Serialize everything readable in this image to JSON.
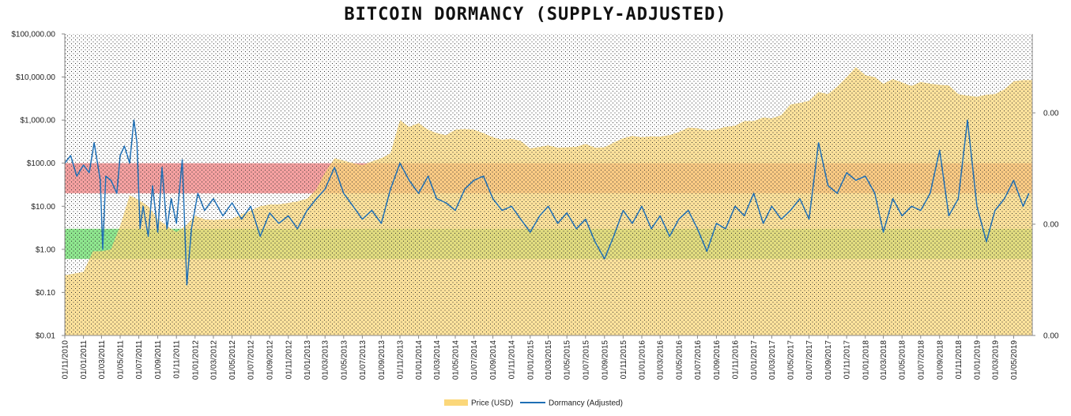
{
  "chart_data": {
    "type": "area",
    "title": "BITCOIN DORMANCY (SUPPLY-ADJUSTED)",
    "y_scale": "log",
    "ylim": [
      0.01,
      100000
    ],
    "y_ticks": [
      "$100,000.00",
      "$10,000.00",
      "$1,000.00",
      "$100.00",
      "$10.00",
      "$1.00",
      "$0.10",
      "$0.01"
    ],
    "y2_ticks": [
      "0.00",
      "0.00",
      "0.00"
    ],
    "x_ticks": [
      "01/11/2010",
      "01/01/2011",
      "01/03/2011",
      "01/05/2011",
      "01/07/2011",
      "01/09/2011",
      "01/11/2011",
      "01/01/2012",
      "01/03/2012",
      "01/05/2012",
      "01/07/2012",
      "01/09/2012",
      "01/11/2012",
      "01/01/2013",
      "01/03/2013",
      "01/05/2013",
      "01/07/2013",
      "01/09/2013",
      "01/11/2013",
      "01/01/2014",
      "01/03/2014",
      "01/05/2014",
      "01/07/2014",
      "01/09/2014",
      "01/11/2014",
      "01/01/2015",
      "01/03/2015",
      "01/05/2015",
      "01/07/2015",
      "01/09/2015",
      "01/11/2015",
      "01/01/2016",
      "01/03/2016",
      "01/05/2016",
      "01/07/2016",
      "01/09/2016",
      "01/11/2016",
      "01/01/2017",
      "01/03/2017",
      "01/05/2017",
      "01/07/2017",
      "01/09/2017",
      "01/11/2017",
      "01/01/2018",
      "01/03/2018",
      "01/05/2018",
      "01/07/2018",
      "01/09/2018",
      "01/11/2018",
      "01/01/2019",
      "01/03/2019",
      "01/05/2019"
    ],
    "bands": [
      {
        "name": "high",
        "ymin": 20,
        "ymax": 100,
        "color": "#f4a0a0"
      },
      {
        "name": "low",
        "ymin": 0.6,
        "ymax": 3,
        "color": "#8ee68e"
      }
    ],
    "series": [
      {
        "name": "Price (USD)",
        "kind": "area",
        "color": "#fbd77a",
        "points": [
          [
            "2010-11-01",
            0.25
          ],
          [
            "2011-01-01",
            0.3
          ],
          [
            "2011-02-01",
            0.9
          ],
          [
            "2011-03-01",
            0.9
          ],
          [
            "2011-04-01",
            1.0
          ],
          [
            "2011-05-01",
            3.5
          ],
          [
            "2011-06-01",
            18
          ],
          [
            "2011-07-01",
            14
          ],
          [
            "2011-08-01",
            10
          ],
          [
            "2011-09-01",
            5
          ],
          [
            "2011-10-01",
            3.5
          ],
          [
            "2011-11-01",
            2.5
          ],
          [
            "2011-12-01",
            3.5
          ],
          [
            "2012-01-01",
            6
          ],
          [
            "2012-02-01",
            5
          ],
          [
            "2012-03-01",
            4.8
          ],
          [
            "2012-04-01",
            5
          ],
          [
            "2012-05-01",
            5.1
          ],
          [
            "2012-06-01",
            6.5
          ],
          [
            "2012-07-01",
            8
          ],
          [
            "2012-08-01",
            10
          ],
          [
            "2012-09-01",
            11
          ],
          [
            "2012-10-01",
            11
          ],
          [
            "2012-11-01",
            12
          ],
          [
            "2012-12-01",
            13
          ],
          [
            "2013-01-01",
            15
          ],
          [
            "2013-02-01",
            25
          ],
          [
            "2013-03-01",
            60
          ],
          [
            "2013-04-01",
            130
          ],
          [
            "2013-05-01",
            115
          ],
          [
            "2013-06-01",
            100
          ],
          [
            "2013-07-01",
            90
          ],
          [
            "2013-08-01",
            110
          ],
          [
            "2013-09-01",
            130
          ],
          [
            "2013-10-01",
            170
          ],
          [
            "2013-11-01",
            1000
          ],
          [
            "2013-12-01",
            700
          ],
          [
            "2014-01-01",
            850
          ],
          [
            "2014-02-01",
            600
          ],
          [
            "2014-03-01",
            500
          ],
          [
            "2014-04-01",
            450
          ],
          [
            "2014-05-01",
            600
          ],
          [
            "2014-06-01",
            620
          ],
          [
            "2014-07-01",
            600
          ],
          [
            "2014-08-01",
            500
          ],
          [
            "2014-09-01",
            400
          ],
          [
            "2014-10-01",
            350
          ],
          [
            "2014-11-01",
            370
          ],
          [
            "2014-12-01",
            330
          ],
          [
            "2015-01-01",
            220
          ],
          [
            "2015-02-01",
            240
          ],
          [
            "2015-03-01",
            260
          ],
          [
            "2015-04-01",
            230
          ],
          [
            "2015-05-01",
            235
          ],
          [
            "2015-06-01",
            240
          ],
          [
            "2015-07-01",
            280
          ],
          [
            "2015-08-01",
            230
          ],
          [
            "2015-09-01",
            235
          ],
          [
            "2015-10-01",
            300
          ],
          [
            "2015-11-01",
            380
          ],
          [
            "2015-12-01",
            430
          ],
          [
            "2016-01-01",
            400
          ],
          [
            "2016-02-01",
            420
          ],
          [
            "2016-03-01",
            415
          ],
          [
            "2016-04-01",
            450
          ],
          [
            "2016-05-01",
            530
          ],
          [
            "2016-06-01",
            670
          ],
          [
            "2016-07-01",
            650
          ],
          [
            "2016-08-01",
            580
          ],
          [
            "2016-09-01",
            610
          ],
          [
            "2016-10-01",
            700
          ],
          [
            "2016-11-01",
            740
          ],
          [
            "2016-12-01",
            950
          ],
          [
            "2017-01-01",
            950
          ],
          [
            "2017-02-01",
            1150
          ],
          [
            "2017-03-01",
            1100
          ],
          [
            "2017-04-01",
            1300
          ],
          [
            "2017-05-01",
            2300
          ],
          [
            "2017-06-01",
            2500
          ],
          [
            "2017-07-01",
            2800
          ],
          [
            "2017-08-01",
            4500
          ],
          [
            "2017-09-01",
            4000
          ],
          [
            "2017-10-01",
            6000
          ],
          [
            "2017-11-01",
            10000
          ],
          [
            "2017-12-01",
            17000
          ],
          [
            "2018-01-01",
            11000
          ],
          [
            "2018-02-01",
            10000
          ],
          [
            "2018-03-01",
            7000
          ],
          [
            "2018-04-01",
            9000
          ],
          [
            "2018-05-01",
            7500
          ],
          [
            "2018-06-01",
            6200
          ],
          [
            "2018-07-01",
            7700
          ],
          [
            "2018-08-01",
            7000
          ],
          [
            "2018-09-01",
            6600
          ],
          [
            "2018-10-01",
            6400
          ],
          [
            "2018-11-01",
            4000
          ],
          [
            "2018-12-01",
            3700
          ],
          [
            "2019-01-01",
            3500
          ],
          [
            "2019-02-01",
            3900
          ],
          [
            "2019-03-01",
            4000
          ],
          [
            "2019-04-01",
            5200
          ],
          [
            "2019-05-01",
            8000
          ],
          [
            "2019-06-01",
            8500
          ]
        ]
      },
      {
        "name": "Dormancy (Adjusted)",
        "kind": "line",
        "color": "#1f6fb5",
        "points": [
          [
            "2010-11-01",
            100
          ],
          [
            "2010-11-20",
            150
          ],
          [
            "2010-12-10",
            50
          ],
          [
            "2011-01-01",
            90
          ],
          [
            "2011-01-20",
            60
          ],
          [
            "2011-02-05",
            300
          ],
          [
            "2011-02-25",
            40
          ],
          [
            "2011-03-05",
            1
          ],
          [
            "2011-03-15",
            50
          ],
          [
            "2011-04-01",
            40
          ],
          [
            "2011-04-20",
            20
          ],
          [
            "2011-05-01",
            150
          ],
          [
            "2011-05-15",
            250
          ],
          [
            "2011-06-01",
            100
          ],
          [
            "2011-06-15",
            1000
          ],
          [
            "2011-06-25",
            300
          ],
          [
            "2011-07-05",
            3
          ],
          [
            "2011-07-15",
            10
          ],
          [
            "2011-08-01",
            2
          ],
          [
            "2011-08-15",
            30
          ],
          [
            "2011-09-01",
            2.5
          ],
          [
            "2011-09-15",
            80
          ],
          [
            "2011-10-01",
            3
          ],
          [
            "2011-10-15",
            15
          ],
          [
            "2011-11-01",
            4
          ],
          [
            "2011-11-20",
            120
          ],
          [
            "2011-12-05",
            0.15
          ],
          [
            "2011-12-20",
            3
          ],
          [
            "2012-01-10",
            20
          ],
          [
            "2012-02-01",
            8
          ],
          [
            "2012-03-01",
            15
          ],
          [
            "2012-04-01",
            6
          ],
          [
            "2012-05-01",
            12
          ],
          [
            "2012-06-01",
            5
          ],
          [
            "2012-07-01",
            10
          ],
          [
            "2012-08-01",
            2
          ],
          [
            "2012-09-01",
            7
          ],
          [
            "2012-10-01",
            4
          ],
          [
            "2012-11-01",
            6
          ],
          [
            "2012-12-01",
            3
          ],
          [
            "2013-01-01",
            8
          ],
          [
            "2013-02-01",
            15
          ],
          [
            "2013-03-01",
            25
          ],
          [
            "2013-04-01",
            80
          ],
          [
            "2013-05-01",
            20
          ],
          [
            "2013-06-01",
            10
          ],
          [
            "2013-07-01",
            5
          ],
          [
            "2013-08-01",
            8
          ],
          [
            "2013-09-01",
            4
          ],
          [
            "2013-10-01",
            25
          ],
          [
            "2013-11-01",
            100
          ],
          [
            "2013-12-01",
            40
          ],
          [
            "2014-01-01",
            20
          ],
          [
            "2014-02-01",
            50
          ],
          [
            "2014-03-01",
            15
          ],
          [
            "2014-04-01",
            12
          ],
          [
            "2014-05-01",
            8
          ],
          [
            "2014-06-01",
            25
          ],
          [
            "2014-07-01",
            40
          ],
          [
            "2014-08-01",
            50
          ],
          [
            "2014-09-01",
            15
          ],
          [
            "2014-10-01",
            8
          ],
          [
            "2014-11-01",
            10
          ],
          [
            "2014-12-01",
            5
          ],
          [
            "2015-01-01",
            2.5
          ],
          [
            "2015-02-01",
            6
          ],
          [
            "2015-03-01",
            10
          ],
          [
            "2015-04-01",
            4
          ],
          [
            "2015-05-01",
            7
          ],
          [
            "2015-06-01",
            3
          ],
          [
            "2015-07-01",
            5
          ],
          [
            "2015-08-01",
            1.5
          ],
          [
            "2015-09-01",
            0.6
          ],
          [
            "2015-10-01",
            2
          ],
          [
            "2015-11-01",
            8
          ],
          [
            "2015-12-01",
            4
          ],
          [
            "2016-01-01",
            10
          ],
          [
            "2016-02-01",
            3
          ],
          [
            "2016-03-01",
            6
          ],
          [
            "2016-04-01",
            2
          ],
          [
            "2016-05-01",
            5
          ],
          [
            "2016-06-01",
            8
          ],
          [
            "2016-07-01",
            3
          ],
          [
            "2016-08-01",
            0.9
          ],
          [
            "2016-09-01",
            4
          ],
          [
            "2016-10-01",
            3
          ],
          [
            "2016-11-01",
            10
          ],
          [
            "2016-12-01",
            6
          ],
          [
            "2017-01-01",
            20
          ],
          [
            "2017-02-01",
            4
          ],
          [
            "2017-03-01",
            10
          ],
          [
            "2017-04-01",
            5
          ],
          [
            "2017-05-01",
            8
          ],
          [
            "2017-06-01",
            15
          ],
          [
            "2017-07-01",
            5
          ],
          [
            "2017-08-01",
            300
          ],
          [
            "2017-09-01",
            30
          ],
          [
            "2017-10-01",
            20
          ],
          [
            "2017-11-01",
            60
          ],
          [
            "2017-12-01",
            40
          ],
          [
            "2018-01-01",
            50
          ],
          [
            "2018-02-01",
            20
          ],
          [
            "2018-03-01",
            2.5
          ],
          [
            "2018-04-01",
            15
          ],
          [
            "2018-05-01",
            6
          ],
          [
            "2018-06-01",
            10
          ],
          [
            "2018-07-01",
            8
          ],
          [
            "2018-08-01",
            20
          ],
          [
            "2018-09-01",
            200
          ],
          [
            "2018-10-01",
            6
          ],
          [
            "2018-11-01",
            15
          ],
          [
            "2018-12-01",
            1000
          ],
          [
            "2019-01-01",
            10
          ],
          [
            "2019-02-01",
            1.5
          ],
          [
            "2019-03-01",
            8
          ],
          [
            "2019-04-01",
            15
          ],
          [
            "2019-05-01",
            40
          ],
          [
            "2019-06-01",
            10
          ],
          [
            "2019-06-20",
            20
          ]
        ]
      }
    ],
    "legend": [
      "Price (USD)",
      "Dormancy (Adjusted)"
    ],
    "legend_placement": "bottom-center"
  }
}
